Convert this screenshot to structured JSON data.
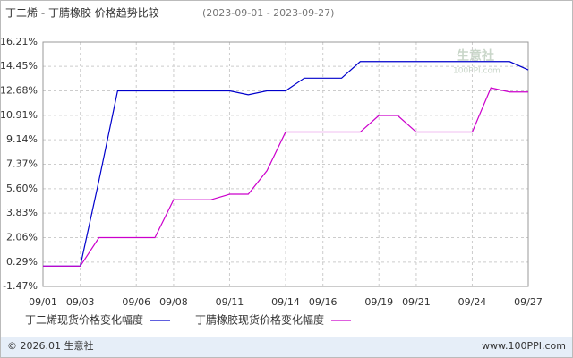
{
  "chart_data": {
    "type": "line",
    "title": "丁二烯 - 丁腈橡胶 价格趋势比较",
    "subtitle": "(2023-09-01 - 2023-09-27)",
    "categories": [
      "09/01",
      null,
      "09/03",
      null,
      null,
      "09/06",
      null,
      "09/08",
      null,
      null,
      "09/11",
      null,
      null,
      "09/14",
      null,
      "09/16",
      null,
      null,
      "09/19",
      null,
      "09/21",
      null,
      null,
      "09/24",
      null,
      null,
      "09/27"
    ],
    "series": [
      {
        "name": "丁二烯现货价格变化幅度",
        "color": "#0000cc",
        "values": [
          0,
          0,
          0,
          6.2,
          12.68,
          12.68,
          12.68,
          12.68,
          12.68,
          12.68,
          12.68,
          12.4,
          12.68,
          12.68,
          13.6,
          13.6,
          13.6,
          14.8,
          14.8,
          14.8,
          14.8,
          14.8,
          14.8,
          14.8,
          14.8,
          14.8,
          14.2
        ]
      },
      {
        "name": "丁腈橡胶现货价格变化幅度",
        "color": "#cc00cc",
        "values": [
          0,
          0,
          0,
          2.06,
          2.06,
          2.06,
          2.06,
          4.8,
          4.8,
          4.8,
          5.2,
          5.2,
          6.9,
          9.7,
          9.7,
          9.7,
          9.7,
          9.7,
          10.9,
          10.9,
          9.7,
          9.7,
          9.7,
          9.7,
          12.9,
          12.6,
          12.6
        ]
      }
    ],
    "ylim": [
      -1.47,
      16.21
    ],
    "yticks": [
      {
        "value": -1.47,
        "label": "-1.47%"
      },
      {
        "value": 0.29,
        "label": "0.29%"
      },
      {
        "value": 2.06,
        "label": "2.06%"
      },
      {
        "value": 3.83,
        "label": "3.83%"
      },
      {
        "value": 5.6,
        "label": "5.60%"
      },
      {
        "value": 7.37,
        "label": "7.37%"
      },
      {
        "value": 9.14,
        "label": "9.14%"
      },
      {
        "value": 10.91,
        "label": "10.91%"
      },
      {
        "value": 12.68,
        "label": "12.68%"
      },
      {
        "value": 14.45,
        "label": "14.45%"
      },
      {
        "value": 16.21,
        "label": "16.21%"
      }
    ],
    "grid": true,
    "watermark": "生意社",
    "watermark_sub": "100PPI.com",
    "footer_left": "© 2026.01 生意社",
    "footer_right": "www.100PPI.com"
  }
}
